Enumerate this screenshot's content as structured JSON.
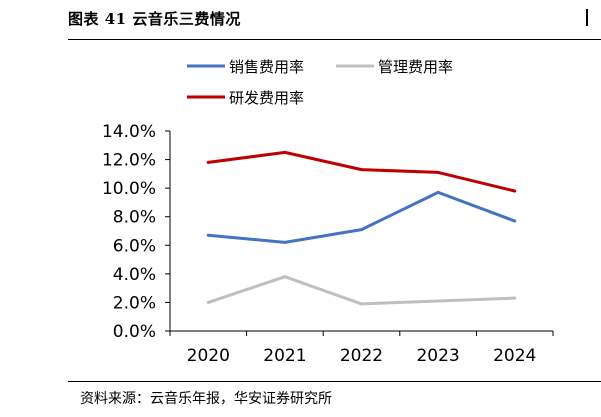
{
  "figure": {
    "title": "图表 41  云音乐三费情况",
    "source": "资料来源：云音乐年报，华安证券研究所"
  },
  "chart_data": {
    "type": "line",
    "categories": [
      "2020",
      "2021",
      "2022",
      "2023",
      "2024"
    ],
    "series": [
      {
        "name": "销售费用率",
        "color": "#4472C4",
        "values": [
          6.7,
          6.2,
          7.1,
          9.7,
          7.7
        ]
      },
      {
        "name": "管理费用率",
        "color": "#BFBFBF",
        "values": [
          2.0,
          3.8,
          1.9,
          2.1,
          2.3
        ]
      },
      {
        "name": "研发费用率",
        "color": "#C00000",
        "values": [
          11.8,
          12.5,
          11.3,
          11.1,
          9.8
        ]
      }
    ],
    "ylim": [
      0,
      14
    ],
    "y_ticks": [
      "0.0%",
      "2.0%",
      "4.0%",
      "6.0%",
      "8.0%",
      "10.0%",
      "12.0%",
      "14.0%"
    ],
    "grid": false,
    "legend_position": "top-left"
  }
}
